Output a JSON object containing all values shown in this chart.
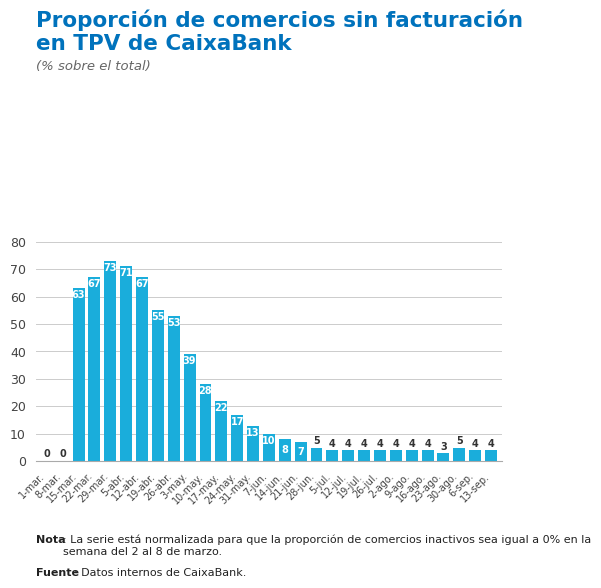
{
  "title_line1": "Proporción de comercios sin facturación",
  "title_line2": "en TPV de CaixaBank",
  "subtitle": "(% sobre el total)",
  "categories": [
    "1-mar.",
    "8-mar.",
    "15-mar.",
    "22-mar.",
    "29-mar.",
    "5-abr.",
    "12-abr.",
    "19-abr.",
    "26-abr.",
    "3-may.",
    "10-may.",
    "17-may.",
    "24-may.",
    "31-may.",
    "7-jun.",
    "14-jun.",
    "21-jun.",
    "28-jun.",
    "5-jul.",
    "12-jul.",
    "19-jul.",
    "26-jul.",
    "2-ago.",
    "9-ago.",
    "16-ago.",
    "23-ago.",
    "30-ago.",
    "6-sep.",
    "13-sep."
  ],
  "values": [
    0,
    0,
    63,
    67,
    73,
    71,
    67,
    55,
    53,
    39,
    28,
    22,
    17,
    13,
    10,
    8,
    7,
    5,
    4,
    4,
    4,
    4,
    4,
    4,
    4,
    3,
    5,
    4,
    4
  ],
  "bar_color": "#1aaddb",
  "title_color": "#0072bc",
  "subtitle_color": "#666666",
  "tick_color": "#444444",
  "grid_color": "#cccccc",
  "note_bold_text": "Nota",
  "note_rest": ": La serie está normalizada para que la proporción de comercios inactivos sea igual a 0% en la\nsemana del 2 al 8 de marzo.",
  "source_bold_text": "Fuente",
  "source_rest": ": Datos internos de CaixaBank.",
  "ylim": [
    0,
    80
  ],
  "yticks": [
    0,
    10,
    20,
    30,
    40,
    50,
    60,
    70,
    80
  ],
  "background_color": "#ffffff",
  "title_fontsize": 15.5,
  "subtitle_fontsize": 9.5,
  "bar_label_fontsize": 7,
  "tick_fontsize": 7,
  "ytick_fontsize": 9,
  "note_fontsize": 8
}
